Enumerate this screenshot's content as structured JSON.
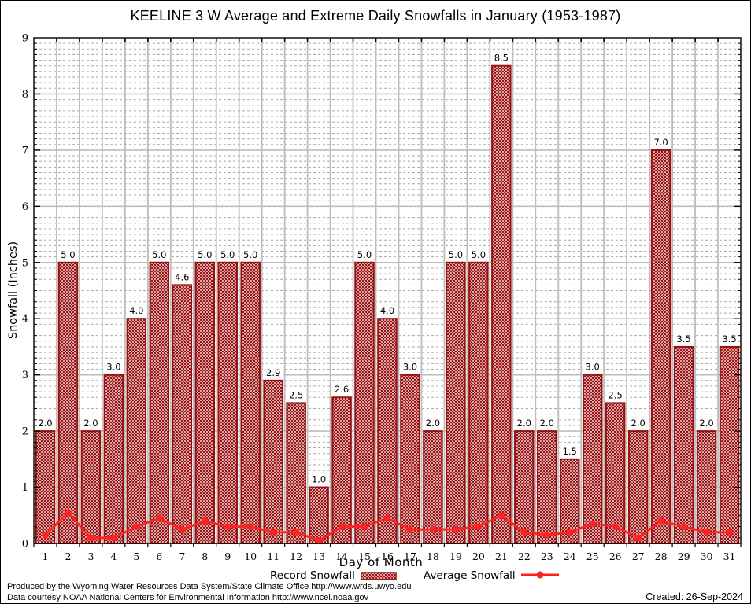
{
  "page": {
    "footer": {
      "line1": "Produced by the Wyoming Water Resources Data System/State Climate Office http://www.wrds.uwyo.edu",
      "line2": "Data courtesy NOAA National Centers for Environmental Information http://www.ncei.noaa.gov",
      "created": "Created: 26-Sep-2024"
    }
  },
  "chart_data": {
    "type": "bar",
    "title": "KEELINE 3 W Average and Extreme Daily Snowfalls in January (1953-1987)",
    "xlabel": "Day of Month",
    "ylabel": "Snowfall (Inches)",
    "ylim": [
      0,
      9
    ],
    "y_major_step": 1,
    "y_minor_step": 0.1,
    "grid": true,
    "legend_position": "bottom",
    "categories": [
      1,
      2,
      3,
      4,
      5,
      6,
      7,
      8,
      9,
      10,
      11,
      12,
      13,
      14,
      15,
      16,
      17,
      18,
      19,
      20,
      21,
      22,
      23,
      24,
      25,
      26,
      27,
      28,
      29,
      30,
      31
    ],
    "series": [
      {
        "name": "Record Snowfall",
        "type": "bar",
        "values": [
          2.0,
          5.0,
          2.0,
          3.0,
          4.0,
          5.0,
          4.6,
          5.0,
          5.0,
          5.0,
          2.9,
          2.5,
          1.0,
          2.6,
          5.0,
          4.0,
          3.0,
          2.0,
          5.0,
          5.0,
          8.5,
          2.0,
          2.0,
          1.5,
          3.0,
          2.5,
          2.0,
          7.0,
          3.5,
          2.0,
          3.5
        ],
        "bar_labels": [
          "2.0",
          "5.0",
          "2.0",
          "3.0",
          "4.0",
          "5.0",
          "4.6",
          "5.0",
          "5.0",
          "5.0",
          "2.9",
          "2.5",
          "1.0",
          "2.6",
          "5.0",
          "4.0",
          "3.0",
          "2.0",
          "5.0",
          "5.0",
          "8.5",
          "2.0",
          "2.0",
          "1.5",
          "3.0",
          "2.5",
          "2.0",
          "7.0",
          "3.5",
          "2.0",
          "3.5"
        ]
      },
      {
        "name": "Average Snowfall",
        "type": "line",
        "values": [
          0.15,
          0.55,
          0.1,
          0.1,
          0.3,
          0.45,
          0.25,
          0.4,
          0.3,
          0.3,
          0.2,
          0.2,
          0.05,
          0.3,
          0.3,
          0.45,
          0.25,
          0.25,
          0.25,
          0.3,
          0.5,
          0.2,
          0.15,
          0.2,
          0.35,
          0.3,
          0.1,
          0.4,
          0.3,
          0.2,
          0.2
        ]
      }
    ],
    "colors": {
      "bar": "#981111",
      "line": "#ff2222",
      "grid_major": "#bdbdbd",
      "grid_minor": "#a8a8a8",
      "axis": "#000000",
      "background": "#ffffff"
    }
  }
}
